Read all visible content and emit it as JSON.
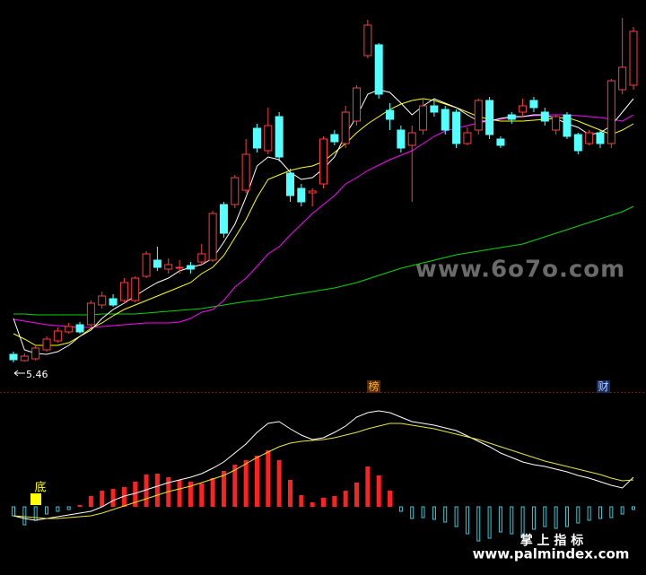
{
  "chart_data": [
    {
      "type": "candlestick",
      "ylim": [
        5.3,
        9.5
      ],
      "up_color": "#ff3c3c",
      "down_color": "#54ffff",
      "open": [
        5.55,
        5.48,
        5.5,
        5.6,
        5.7,
        5.8,
        5.88,
        5.88,
        6.1,
        6.17,
        6.15,
        6.15,
        6.42,
        6.6,
        6.5,
        6.52,
        6.54,
        6.58,
        6.6,
        7.22,
        7.22,
        7.38,
        8.07,
        7.82,
        8.2,
        7.57,
        7.4,
        7.35,
        7.45,
        8.0,
        7.9,
        8.15,
        8.88,
        9.0,
        8.27,
        8.05,
        7.88,
        8.05,
        8.32,
        8.28,
        8.25,
        7.9,
        8.05,
        8.38,
        7.95,
        8.22,
        8.25,
        8.38,
        8.25,
        8.05,
        8.22,
        8.0,
        7.9,
        8.02,
        7.9,
        8.5,
        8.55
      ],
      "high": [
        5.58,
        5.56,
        5.66,
        5.75,
        5.85,
        5.9,
        5.91,
        6.15,
        6.25,
        6.22,
        6.4,
        6.42,
        6.7,
        6.75,
        6.62,
        6.6,
        6.58,
        6.78,
        7.15,
        7.25,
        7.55,
        7.95,
        8.12,
        8.3,
        8.25,
        7.62,
        7.45,
        7.4,
        7.98,
        8.05,
        8.32,
        8.55,
        9.28,
        9.02,
        8.35,
        8.1,
        8.1,
        8.4,
        8.4,
        8.32,
        8.28,
        8.08,
        8.4,
        8.42,
        7.98,
        8.25,
        8.4,
        8.42,
        8.3,
        8.22,
        8.25,
        8.02,
        8.05,
        8.05,
        8.62,
        9.3,
        9.2
      ],
      "low": [
        5.46,
        5.47,
        5.48,
        5.58,
        5.68,
        5.78,
        5.78,
        5.86,
        6.06,
        6.08,
        6.12,
        6.13,
        6.4,
        6.48,
        6.45,
        6.45,
        6.45,
        6.55,
        6.58,
        6.85,
        7.18,
        7.35,
        7.8,
        7.78,
        7.7,
        7.25,
        7.2,
        7.2,
        7.4,
        7.88,
        7.85,
        8.1,
        8.85,
        8.4,
        8.05,
        7.8,
        7.25,
        8.0,
        8.2,
        8.0,
        7.85,
        7.88,
        8.0,
        7.95,
        7.85,
        8.12,
        8.2,
        8.25,
        8.1,
        8.0,
        7.95,
        7.78,
        7.88,
        7.85,
        7.85,
        8.45,
        8.5
      ],
      "close": [
        5.49,
        5.53,
        5.62,
        5.72,
        5.81,
        5.86,
        5.8,
        6.12,
        6.2,
        6.1,
        6.35,
        6.4,
        6.67,
        6.52,
        6.55,
        6.52,
        6.5,
        6.67,
        7.12,
        6.9,
        7.52,
        7.78,
        7.85,
        8.1,
        7.75,
        7.32,
        7.25,
        7.37,
        7.95,
        7.92,
        8.25,
        8.52,
        9.22,
        8.45,
        8.17,
        7.85,
        8.02,
        8.32,
        8.25,
        8.05,
        7.9,
        8.02,
        8.38,
        8.0,
        7.88,
        8.17,
        8.32,
        8.3,
        8.15,
        8.2,
        7.98,
        7.82,
        8.02,
        7.9,
        8.6,
        8.75,
        9.15
      ],
      "series": [
        {
          "color": "#00d800",
          "values": [
            6.0,
            6.0,
            5.99,
            5.99,
            5.99,
            5.99,
            5.99,
            5.99,
            6.0,
            6.0,
            6.0,
            6.0,
            6.01,
            6.02,
            6.03,
            6.04,
            6.05,
            6.06,
            6.08,
            6.1,
            6.12,
            6.14,
            6.15,
            6.17,
            6.19,
            6.21,
            6.23,
            6.25,
            6.27,
            6.29,
            6.32,
            6.35,
            6.39,
            6.43,
            6.47,
            6.51,
            6.54,
            6.57,
            6.6,
            6.63,
            6.66,
            6.68,
            6.7,
            6.72,
            6.74,
            6.76,
            6.78,
            6.82,
            6.86,
            6.9,
            6.94,
            6.98,
            7.02,
            7.06,
            7.1,
            7.14,
            7.2
          ]
        },
        {
          "color": "#ff00ff",
          "values": [
            5.94,
            5.92,
            5.9,
            5.88,
            5.87,
            5.86,
            5.85,
            5.85,
            5.86,
            5.87,
            5.88,
            5.89,
            5.9,
            5.9,
            5.9,
            5.91,
            5.95,
            6.02,
            6.05,
            6.15,
            6.3,
            6.4,
            6.53,
            6.67,
            6.75,
            6.88,
            7.0,
            7.12,
            7.22,
            7.32,
            7.45,
            7.52,
            7.6,
            7.66,
            7.72,
            7.77,
            7.82,
            7.9,
            7.98,
            8.04,
            8.07,
            8.1,
            8.13,
            8.15,
            8.17,
            8.19,
            8.2,
            8.21,
            8.22,
            8.22,
            8.22,
            8.21,
            8.2,
            8.19,
            8.17,
            8.15,
            8.22
          ]
        },
        {
          "color": "#ffff00",
          "values": [
            5.78,
            5.72,
            5.65,
            5.65,
            5.65,
            5.68,
            5.75,
            5.84,
            5.9,
            5.98,
            6.05,
            6.1,
            6.15,
            6.2,
            6.25,
            6.3,
            6.35,
            6.45,
            6.52,
            6.65,
            6.85,
            7.05,
            7.3,
            7.5,
            7.55,
            7.6,
            7.63,
            7.65,
            7.7,
            7.8,
            7.9,
            8.02,
            8.12,
            8.2,
            8.28,
            8.34,
            8.38,
            8.4,
            8.38,
            8.34,
            8.3,
            8.25,
            8.2,
            8.17,
            8.15,
            8.15,
            8.15,
            8.16,
            8.17,
            8.18,
            8.19,
            8.15,
            8.1,
            8.05,
            8.0,
            8.05,
            8.12
          ]
        },
        {
          "color": "#ffffff",
          "values": [
            5.95,
            5.6,
            5.56,
            5.55,
            5.58,
            5.65,
            5.75,
            5.82,
            5.95,
            6.05,
            6.12,
            6.2,
            6.28,
            6.35,
            6.4,
            6.48,
            6.52,
            6.55,
            6.62,
            6.8,
            7.0,
            7.3,
            7.65,
            7.75,
            7.72,
            7.58,
            7.5,
            7.52,
            7.62,
            7.75,
            8.0,
            8.2,
            8.45,
            8.5,
            8.47,
            8.35,
            8.22,
            8.32,
            8.4,
            8.35,
            8.3,
            8.22,
            8.15,
            8.15,
            8.18,
            8.2,
            8.2,
            8.22,
            8.22,
            8.18,
            8.12,
            8.08,
            8.0,
            8.02,
            8.1,
            8.25,
            8.4
          ]
        }
      ],
      "low_label": 5.46,
      "annotations": [
        "榜",
        "财"
      ]
    },
    {
      "type": "macd",
      "ylim": [
        -0.75,
        1.25
      ],
      "up_color": "#ff2020",
      "down_color": "#3cc8d8",
      "values": [
        -0.1,
        -0.2,
        -0.15,
        -0.08,
        -0.05,
        -0.03,
        0.02,
        0.12,
        0.18,
        0.2,
        0.22,
        0.28,
        0.36,
        0.37,
        0.33,
        0.3,
        0.28,
        0.26,
        0.32,
        0.4,
        0.47,
        0.52,
        0.57,
        0.63,
        0.52,
        0.3,
        0.13,
        0.05,
        0.1,
        0.12,
        0.18,
        0.27,
        0.45,
        0.35,
        0.18,
        -0.05,
        -0.13,
        -0.12,
        -0.14,
        -0.17,
        -0.22,
        -0.3,
        -0.38,
        -0.35,
        -0.28,
        -0.3,
        -0.33,
        -0.25,
        -0.22,
        -0.24,
        -0.22,
        -0.18,
        -0.15,
        -0.13,
        -0.12,
        -0.08,
        -0.03
      ],
      "series": [
        {
          "color": "#ffffff",
          "values": [
            -0.1,
            -0.13,
            -0.15,
            -0.13,
            -0.11,
            -0.09,
            -0.07,
            -0.05,
            0.0,
            0.07,
            0.12,
            0.15,
            0.19,
            0.23,
            0.27,
            0.3,
            0.33,
            0.37,
            0.43,
            0.5,
            0.6,
            0.7,
            0.83,
            0.93,
            0.95,
            0.87,
            0.8,
            0.75,
            0.77,
            0.83,
            0.9,
            1.0,
            1.05,
            1.07,
            1.05,
            1.0,
            0.95,
            0.93,
            0.91,
            0.88,
            0.85,
            0.79,
            0.73,
            0.67,
            0.6,
            0.55,
            0.5,
            0.47,
            0.45,
            0.42,
            0.39,
            0.35,
            0.32,
            0.28,
            0.24,
            0.21,
            0.33
          ]
        },
        {
          "color": "#e8e830",
          "values": [
            -0.1,
            -0.11,
            -0.12,
            -0.13,
            -0.13,
            -0.12,
            -0.11,
            -0.1,
            -0.07,
            -0.03,
            0.01,
            0.05,
            0.09,
            0.13,
            0.17,
            0.2,
            0.23,
            0.27,
            0.31,
            0.35,
            0.41,
            0.48,
            0.55,
            0.61,
            0.67,
            0.71,
            0.73,
            0.74,
            0.75,
            0.77,
            0.8,
            0.83,
            0.87,
            0.9,
            0.93,
            0.93,
            0.91,
            0.89,
            0.87,
            0.84,
            0.81,
            0.78,
            0.75,
            0.71,
            0.67,
            0.63,
            0.59,
            0.55,
            0.51,
            0.48,
            0.45,
            0.42,
            0.39,
            0.36,
            0.32,
            0.29,
            0.3
          ]
        }
      ],
      "signal_label": "底"
    }
  ],
  "watermark": {
    "site": "www.6o7o.com",
    "brand": "掌 上 指 标",
    "brand_url": "www.palmindex.com"
  }
}
